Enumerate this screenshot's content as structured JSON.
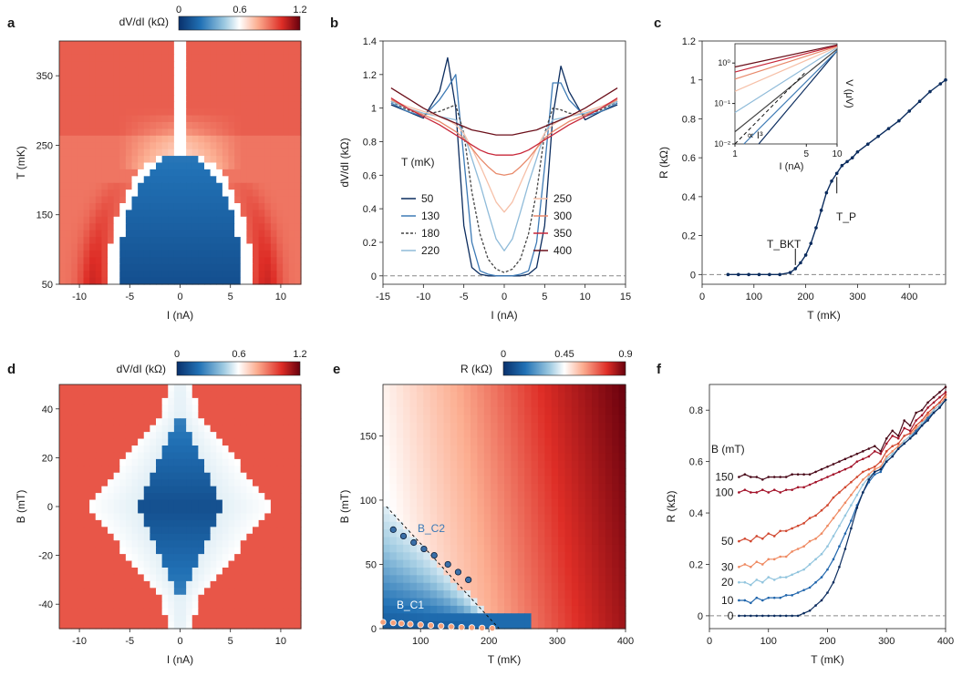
{
  "panels": {
    "a": {
      "letter": "a",
      "cbar_label": "dV/dI (kΩ)",
      "cbar_ticks": [
        "0",
        "0.6",
        "1.2"
      ],
      "xlabel": "I (nA)",
      "ylabel": "T (mK)"
    },
    "b": {
      "letter": "b",
      "legend_title": "T (mK)"
    },
    "c": {
      "letter": "c",
      "ann_bkt": "T_BKT",
      "ann_p": "T_P",
      "inset_label": "∝ I³"
    },
    "d": {
      "letter": "d",
      "cbar_label": "dV/dI (kΩ)",
      "cbar_ticks": [
        "0",
        "0.6",
        "1.2"
      ],
      "xlabel": "I (nA)",
      "ylabel": "B (mT)"
    },
    "e": {
      "letter": "e",
      "cbar_label": "R (kΩ)",
      "cbar_ticks": [
        "0",
        "0.45",
        "0.9"
      ],
      "xlabel": "T (mK)",
      "ylabel": "B (mT)",
      "ann_c1": "B_C1",
      "ann_c2": "B_C2"
    },
    "f": {
      "letter": "f",
      "legend_title": "B (mT)"
    }
  },
  "colors": {
    "diverging": [
      "#08306b",
      "#2171b5",
      "#9ecae1",
      "#ffffff",
      "#fcae91",
      "#de2d26",
      "#67000d"
    ]
  },
  "chart_data": [
    {
      "panel": "a",
      "type": "heatmap",
      "title": "",
      "xlabel": "I (nA)",
      "ylabel": "T (mK)",
      "xlim": [
        -12,
        12
      ],
      "ylim": [
        50,
        400
      ],
      "xticks": [
        -10,
        -5,
        0,
        5,
        10
      ],
      "yticks": [
        50,
        150,
        250,
        350
      ],
      "colorbar": {
        "label": "dV/dI (kΩ)",
        "range": [
          0,
          1.2
        ],
        "ticks": [
          0,
          0.6,
          1.2
        ]
      }
    },
    {
      "panel": "b",
      "type": "line",
      "xlabel": "I (nA)",
      "ylabel": "dV/dI (kΩ)",
      "xlim": [
        -15,
        15
      ],
      "ylim": [
        -0.05,
        1.4
      ],
      "xticks": [
        -15,
        -10,
        -5,
        0,
        5,
        10,
        15
      ],
      "yticks": [
        0,
        0.2,
        0.4,
        0.6,
        0.8,
        1.0,
        1.2,
        1.4
      ],
      "legend_title": "T (mK)",
      "x": [
        -14,
        -12,
        -10,
        -8,
        -7,
        -6,
        -5,
        -4,
        -3,
        -2,
        -1,
        0,
        1,
        2,
        3,
        4,
        5,
        6,
        7,
        8,
        10,
        12,
        14
      ],
      "series": [
        {
          "name": "50",
          "color": "#0b2c5e",
          "dashed": false,
          "values": [
            1.02,
            0.98,
            0.94,
            1.1,
            1.3,
            1.0,
            0.3,
            0.05,
            0.01,
            0.0,
            0.0,
            0.0,
            0.0,
            0.0,
            0.01,
            0.05,
            0.3,
            0.95,
            1.25,
            1.1,
            0.93,
            0.98,
            1.02
          ]
        },
        {
          "name": "130",
          "color": "#3d7ab5",
          "dashed": false,
          "values": [
            1.03,
            0.98,
            0.95,
            1.05,
            1.12,
            1.2,
            0.7,
            0.2,
            0.03,
            0.01,
            0.0,
            0.0,
            0.0,
            0.01,
            0.03,
            0.2,
            0.65,
            1.15,
            1.15,
            1.05,
            0.95,
            0.98,
            1.03
          ]
        },
        {
          "name": "180",
          "color": "#444444",
          "dashed": true,
          "values": [
            1.04,
            0.99,
            0.96,
            0.98,
            1.0,
            1.02,
            0.85,
            0.5,
            0.25,
            0.1,
            0.04,
            0.02,
            0.04,
            0.1,
            0.25,
            0.5,
            0.85,
            1.0,
            0.99,
            0.97,
            0.96,
            0.99,
            1.04
          ]
        },
        {
          "name": "220",
          "color": "#8fbbd9",
          "dashed": false,
          "values": [
            1.04,
            1.0,
            0.97,
            0.95,
            0.94,
            0.93,
            0.85,
            0.7,
            0.55,
            0.38,
            0.22,
            0.15,
            0.22,
            0.38,
            0.55,
            0.7,
            0.85,
            0.93,
            0.94,
            0.95,
            0.97,
            1.0,
            1.04
          ]
        },
        {
          "name": "250",
          "color": "#f6c0a8",
          "dashed": false,
          "values": [
            1.05,
            1.01,
            0.98,
            0.95,
            0.93,
            0.9,
            0.85,
            0.76,
            0.66,
            0.55,
            0.44,
            0.38,
            0.44,
            0.55,
            0.66,
            0.76,
            0.85,
            0.9,
            0.93,
            0.95,
            0.98,
            1.01,
            1.05
          ]
        },
        {
          "name": "300",
          "color": "#e8896a",
          "dashed": false,
          "values": [
            1.05,
            1.0,
            0.96,
            0.92,
            0.89,
            0.86,
            0.82,
            0.76,
            0.7,
            0.65,
            0.61,
            0.6,
            0.61,
            0.65,
            0.7,
            0.76,
            0.82,
            0.86,
            0.89,
            0.92,
            0.96,
            1.0,
            1.05
          ]
        },
        {
          "name": "350",
          "color": "#c8283a",
          "dashed": false,
          "values": [
            1.06,
            1.0,
            0.95,
            0.9,
            0.87,
            0.84,
            0.81,
            0.78,
            0.75,
            0.73,
            0.72,
            0.72,
            0.72,
            0.73,
            0.75,
            0.78,
            0.81,
            0.84,
            0.87,
            0.9,
            0.95,
            1.0,
            1.06
          ]
        },
        {
          "name": "400",
          "color": "#6b0f1a",
          "dashed": false,
          "values": [
            1.12,
            1.06,
            1.0,
            0.95,
            0.93,
            0.91,
            0.89,
            0.87,
            0.86,
            0.85,
            0.84,
            0.84,
            0.84,
            0.85,
            0.86,
            0.87,
            0.89,
            0.91,
            0.93,
            0.95,
            1.0,
            1.06,
            1.12
          ]
        }
      ]
    },
    {
      "panel": "c",
      "type": "line",
      "xlabel": "T (mK)",
      "ylabel": "R (kΩ)",
      "xlim": [
        0,
        470
      ],
      "ylim": [
        -0.05,
        1.2
      ],
      "xticks": [
        0,
        100,
        200,
        300,
        400
      ],
      "yticks": [
        0,
        0.2,
        0.4,
        0.6,
        0.8,
        1.0,
        1.2
      ],
      "x": [
        50,
        70,
        90,
        110,
        130,
        150,
        170,
        180,
        190,
        200,
        210,
        220,
        230,
        240,
        250,
        260,
        270,
        280,
        290,
        300,
        320,
        340,
        360,
        380,
        400,
        420,
        440,
        460,
        470
      ],
      "values": [
        0.0,
        0.0,
        0.0,
        0.0,
        0.0,
        0.0,
        0.01,
        0.03,
        0.06,
        0.1,
        0.16,
        0.24,
        0.33,
        0.42,
        0.48,
        0.52,
        0.56,
        0.58,
        0.6,
        0.63,
        0.67,
        0.71,
        0.75,
        0.79,
        0.84,
        0.89,
        0.94,
        0.98,
        1.0
      ],
      "annotations": [
        {
          "text": "T_BKT",
          "x": 180
        },
        {
          "text": "T_P",
          "x": 260
        }
      ],
      "inset": {
        "type": "line",
        "xscale": "log",
        "yscale": "log",
        "xlabel": "I (nA)",
        "ylabel": "V (μV)",
        "xlim": [
          1,
          10
        ],
        "ylim": [
          0.01,
          3
        ],
        "xticks": [
          1,
          5,
          10
        ],
        "yticks": [
          "10⁻²",
          "10⁻¹",
          "10⁰"
        ],
        "x": [
          1,
          10
        ],
        "series": [
          {
            "name": "50",
            "values": [
              0.002,
              2.0
            ]
          },
          {
            "name": "130",
            "values": [
              0.006,
              2.0
            ]
          },
          {
            "name": "180",
            "values": [
              0.02,
              2.2
            ]
          },
          {
            "name": "220",
            "values": [
              0.06,
              2.4
            ]
          },
          {
            "name": "250",
            "values": [
              0.2,
              2.5
            ]
          },
          {
            "name": "300",
            "values": [
              0.4,
              2.6
            ]
          },
          {
            "name": "350",
            "values": [
              0.6,
              2.7
            ]
          },
          {
            "name": "400",
            "values": [
              0.8,
              2.8
            ]
          }
        ],
        "guide": {
          "label": "∝ I³",
          "x": [
            1,
            5
          ],
          "values": [
            0.005,
            0.625
          ]
        }
      }
    },
    {
      "panel": "d",
      "type": "heatmap",
      "xlabel": "I (nA)",
      "ylabel": "B (mT)",
      "xlim": [
        -12,
        12
      ],
      "ylim": [
        -50,
        50
      ],
      "xticks": [
        -10,
        -5,
        0,
        5,
        10
      ],
      "yticks": [
        -40,
        -20,
        0,
        20,
        40
      ],
      "colorbar": {
        "label": "dV/dI (kΩ)",
        "range": [
          0,
          1.2
        ],
        "ticks": [
          0,
          0.6,
          1.2
        ]
      }
    },
    {
      "panel": "e",
      "type": "heatmap",
      "xlabel": "T (mK)",
      "ylabel": "B (mT)",
      "xlim": [
        45,
        400
      ],
      "ylim": [
        0,
        190
      ],
      "xticks": [
        100,
        200,
        300,
        400
      ],
      "yticks": [
        0,
        50,
        100,
        150
      ],
      "colorbar": {
        "label": "R (kΩ)",
        "range": [
          0,
          0.9
        ],
        "ticks": [
          0,
          0.45,
          0.9
        ]
      },
      "points_Bc2": {
        "x": [
          60,
          75,
          90,
          105,
          120,
          140,
          155,
          170
        ],
        "values": [
          77,
          72,
          67,
          62,
          57,
          50,
          44,
          38
        ]
      },
      "points_Bc1": {
        "x": [
          45,
          60,
          72,
          85,
          100,
          115,
          130,
          145,
          160,
          175,
          190,
          205
        ],
        "values": [
          5,
          4.5,
          4,
          3.5,
          3,
          2.5,
          2,
          1.5,
          1,
          0.8,
          0.5,
          0.3
        ]
      },
      "line_Bc2": {
        "x": [
          50,
          215
        ],
        "values": [
          95,
          0
        ]
      }
    },
    {
      "panel": "f",
      "type": "line",
      "xlabel": "T (mK)",
      "ylabel": "R (kΩ)",
      "xlim": [
        0,
        400
      ],
      "ylim": [
        -0.05,
        0.9
      ],
      "xticks": [
        0,
        100,
        200,
        300,
        400
      ],
      "yticks": [
        0,
        0.2,
        0.4,
        0.6,
        0.8
      ],
      "legend_title": "B (mT)",
      "x": [
        50,
        60,
        70,
        80,
        90,
        100,
        110,
        120,
        130,
        140,
        150,
        160,
        170,
        180,
        190,
        200,
        210,
        220,
        230,
        240,
        250,
        260,
        270,
        280,
        290,
        300,
        310,
        320,
        330,
        340,
        350,
        360,
        370,
        380,
        390,
        400
      ],
      "series": [
        {
          "name": "150",
          "color": "#4a0a1a",
          "values": [
            0.54,
            0.55,
            0.54,
            0.54,
            0.53,
            0.54,
            0.54,
            0.54,
            0.54,
            0.55,
            0.55,
            0.55,
            0.55,
            0.56,
            0.57,
            0.58,
            0.59,
            0.6,
            0.61,
            0.62,
            0.63,
            0.64,
            0.65,
            0.66,
            0.64,
            0.69,
            0.72,
            0.7,
            0.76,
            0.74,
            0.79,
            0.8,
            0.83,
            0.85,
            0.87,
            0.89
          ]
        },
        {
          "name": "100",
          "color": "#a3132a",
          "values": [
            0.48,
            0.49,
            0.48,
            0.48,
            0.49,
            0.48,
            0.49,
            0.48,
            0.49,
            0.49,
            0.5,
            0.5,
            0.51,
            0.52,
            0.53,
            0.54,
            0.55,
            0.56,
            0.57,
            0.58,
            0.6,
            0.61,
            0.62,
            0.64,
            0.63,
            0.67,
            0.7,
            0.69,
            0.73,
            0.72,
            0.76,
            0.78,
            0.81,
            0.83,
            0.85,
            0.87
          ]
        },
        {
          "name": "50",
          "color": "#d1472f",
          "values": [
            0.29,
            0.3,
            0.29,
            0.31,
            0.3,
            0.32,
            0.31,
            0.33,
            0.33,
            0.34,
            0.35,
            0.36,
            0.38,
            0.39,
            0.41,
            0.43,
            0.46,
            0.48,
            0.5,
            0.52,
            0.54,
            0.56,
            0.57,
            0.58,
            0.6,
            0.64,
            0.66,
            0.67,
            0.7,
            0.71,
            0.74,
            0.76,
            0.79,
            0.81,
            0.83,
            0.86
          ]
        },
        {
          "name": "30",
          "color": "#ef8a62",
          "values": [
            0.19,
            0.2,
            0.19,
            0.21,
            0.2,
            0.22,
            0.22,
            0.23,
            0.23,
            0.25,
            0.26,
            0.27,
            0.29,
            0.3,
            0.32,
            0.35,
            0.38,
            0.41,
            0.44,
            0.47,
            0.5,
            0.53,
            0.55,
            0.57,
            0.58,
            0.62,
            0.64,
            0.66,
            0.68,
            0.7,
            0.73,
            0.75,
            0.78,
            0.8,
            0.82,
            0.85
          ]
        },
        {
          "name": "20",
          "color": "#92c5de",
          "values": [
            0.13,
            0.13,
            0.12,
            0.14,
            0.13,
            0.15,
            0.14,
            0.15,
            0.15,
            0.16,
            0.17,
            0.18,
            0.2,
            0.22,
            0.24,
            0.27,
            0.31,
            0.35,
            0.39,
            0.43,
            0.47,
            0.51,
            0.54,
            0.56,
            0.57,
            0.61,
            0.63,
            0.65,
            0.68,
            0.7,
            0.72,
            0.75,
            0.77,
            0.8,
            0.82,
            0.84
          ]
        },
        {
          "name": "10",
          "color": "#2166ac",
          "values": [
            0.06,
            0.06,
            0.05,
            0.07,
            0.06,
            0.07,
            0.07,
            0.07,
            0.08,
            0.08,
            0.09,
            0.1,
            0.11,
            0.13,
            0.15,
            0.18,
            0.22,
            0.27,
            0.32,
            0.37,
            0.43,
            0.48,
            0.52,
            0.55,
            0.56,
            0.6,
            0.62,
            0.65,
            0.67,
            0.69,
            0.72,
            0.74,
            0.77,
            0.79,
            0.81,
            0.84
          ]
        },
        {
          "name": "0",
          "color": "#0b2c5e",
          "values": [
            0.0,
            0.0,
            0.0,
            0.0,
            0.0,
            0.0,
            0.0,
            0.0,
            0.0,
            0.0,
            0.0,
            0.01,
            0.02,
            0.04,
            0.06,
            0.09,
            0.13,
            0.19,
            0.26,
            0.34,
            0.42,
            0.48,
            0.53,
            0.56,
            0.57,
            0.6,
            0.62,
            0.65,
            0.67,
            0.69,
            0.71,
            0.74,
            0.76,
            0.79,
            0.81,
            0.84
          ]
        }
      ]
    }
  ]
}
